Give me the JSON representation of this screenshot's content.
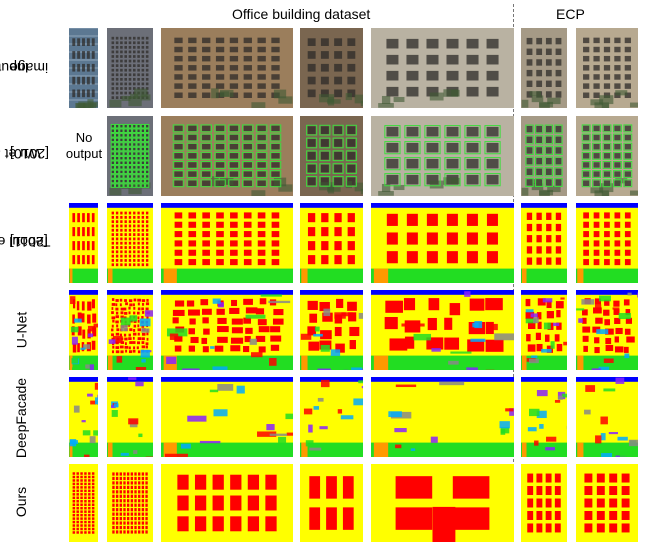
{
  "figure": {
    "headers": {
      "office": "Office building dataset",
      "ecp": "ECP"
    },
    "row_labels": {
      "input": [
        "Input",
        "image"
      ],
      "wu": [
        "Wu et al.",
        "[2010]"
      ],
      "teboul": [
        "Teboul et al.",
        "[2011]"
      ],
      "unet": [
        "U-Net"
      ],
      "deepfacade": [
        "DeepFacade"
      ],
      "ours": [
        "Ours"
      ]
    },
    "no_output": [
      "No",
      "output"
    ],
    "colors": {
      "wall": "#ffff00",
      "window": "#ff0000",
      "sky": "#0000ff",
      "shop": "#22dd22",
      "door": "#ff9900",
      "balcony": "#8822ff",
      "cornice": "#00aaff"
    }
  }
}
